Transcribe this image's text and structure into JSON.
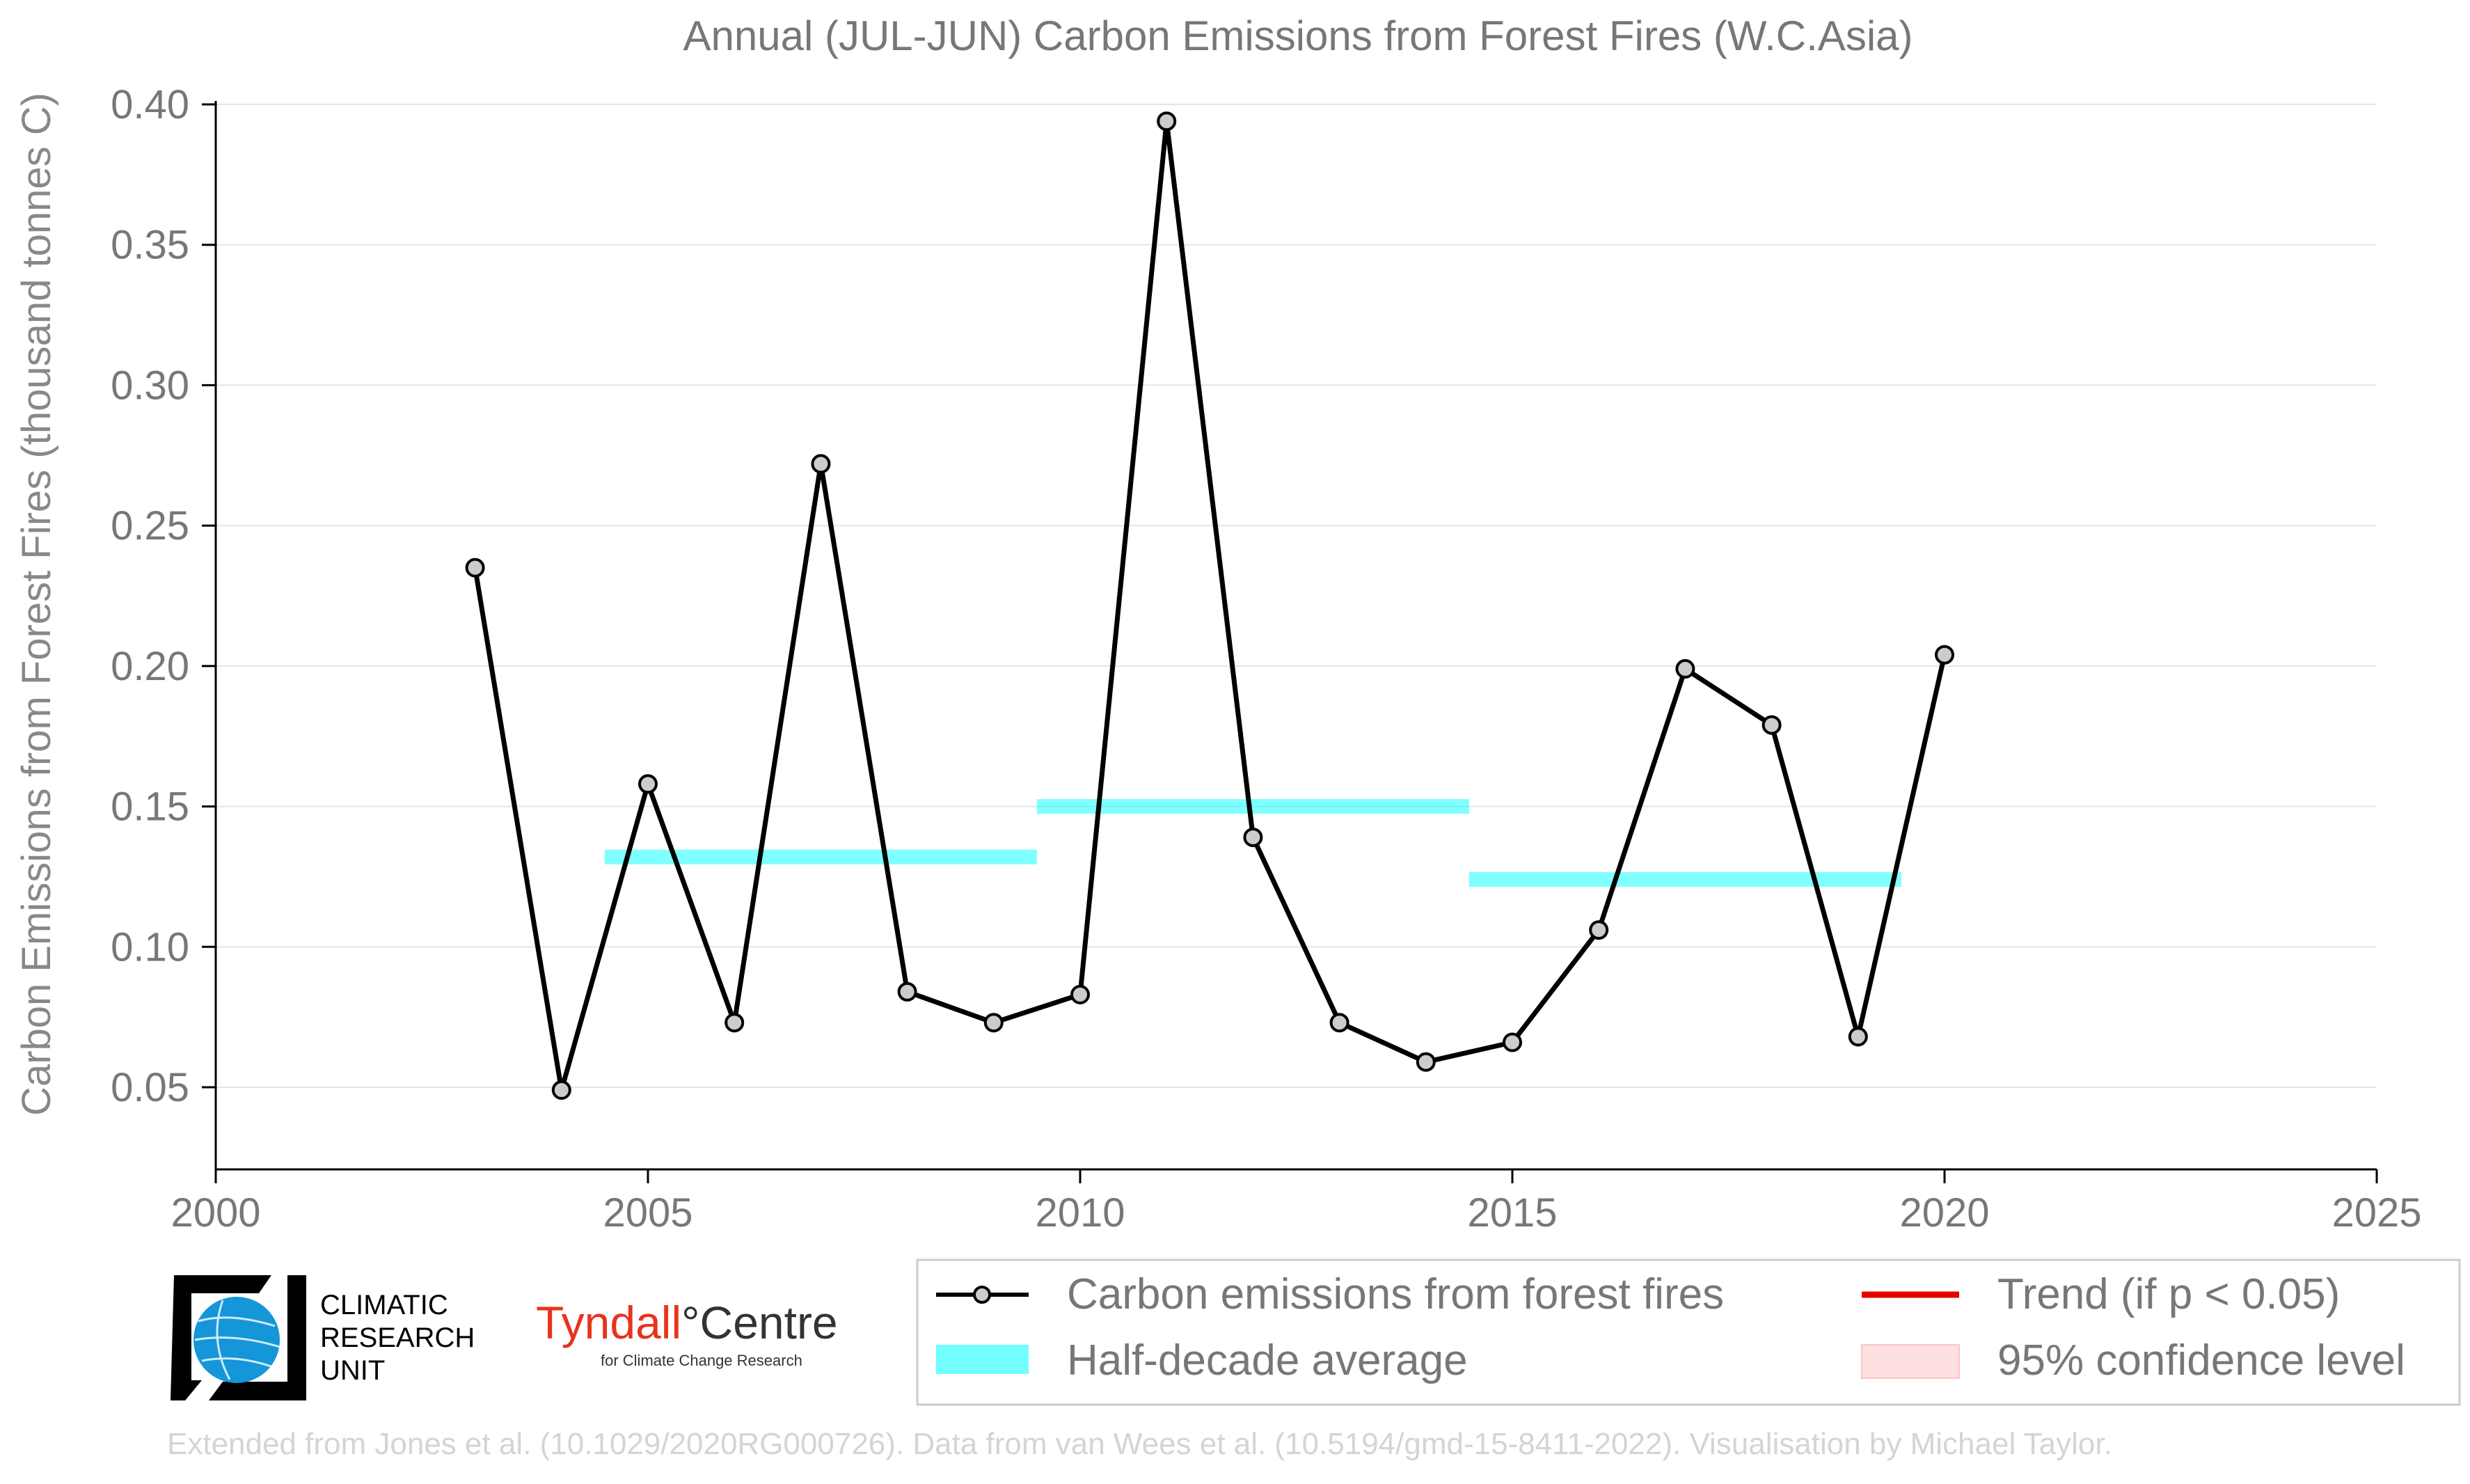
{
  "chart_data": {
    "type": "line",
    "title": "Annual (JUL-JUN) Carbon Emissions from Forest Fires (W.C.Asia)",
    "ylabel": "Carbon Emissions from Forest Fires (thousand tonnes C)",
    "xlabel": "",
    "xlim": [
      2000,
      2025
    ],
    "ylim": [
      0.02,
      0.4
    ],
    "x_ticks": [
      2000,
      2005,
      2010,
      2015,
      2020,
      2025
    ],
    "y_ticks": [
      0.05,
      0.1,
      0.15,
      0.2,
      0.25,
      0.3,
      0.35,
      0.4
    ],
    "y_tick_labels": [
      "0.05",
      "0.10",
      "0.15",
      "0.20",
      "0.25",
      "0.30",
      "0.35",
      "0.40"
    ],
    "x_tick_labels": [
      "2000",
      "2005",
      "2010",
      "2015",
      "2020",
      "2025"
    ],
    "grid": "horizontal",
    "series": [
      {
        "name": "Carbon emissions from forest fires",
        "color": "#000000",
        "marker_fill": "#cccccc",
        "x": [
          2003,
          2004,
          2005,
          2006,
          2007,
          2008,
          2009,
          2010,
          2011,
          2012,
          2013,
          2014,
          2015,
          2016,
          2017,
          2018,
          2019,
          2020
        ],
        "values": [
          0.235,
          0.049,
          0.158,
          0.073,
          0.272,
          0.084,
          0.073,
          0.083,
          0.394,
          0.139,
          0.073,
          0.059,
          0.066,
          0.106,
          0.199,
          0.179,
          0.068,
          0.204
        ]
      }
    ],
    "half_decade_average": {
      "name": "Half-decade average",
      "color": "#00ffff",
      "segments": [
        {
          "x_start": 2004.5,
          "x_end": 2009.5,
          "value": 0.132
        },
        {
          "x_start": 2009.5,
          "x_end": 2014.5,
          "value": 0.15
        },
        {
          "x_start": 2014.5,
          "x_end": 2019.5,
          "value": 0.124
        }
      ]
    },
    "legend": {
      "placement": "bottom-right",
      "entries": [
        {
          "label": "Carbon emissions from forest fires",
          "kind": "line-marker",
          "color": "#000000"
        },
        {
          "label": "Half-decade average",
          "kind": "band",
          "color": "#00ffff"
        },
        {
          "label": "Trend (if p < 0.05)",
          "kind": "line",
          "color": "#e60000"
        },
        {
          "label": "95% confidence level",
          "kind": "band",
          "color": "#ffd6d6"
        }
      ]
    }
  },
  "logos": {
    "cru_line1": "CLIMATIC",
    "cru_line2": "RESEARCH",
    "cru_line3": "UNIT",
    "tyndall_name": "Tyndall",
    "tyndall_degree": "°",
    "tyndall_centre": "Centre",
    "tyndall_sub": "for Climate Change Research"
  },
  "footer": "Extended from Jones et al. (10.1029/2020RG000726). Data from van Wees et al. (10.5194/gmd-15-8411-2022). Visualisation by Michael Taylor."
}
